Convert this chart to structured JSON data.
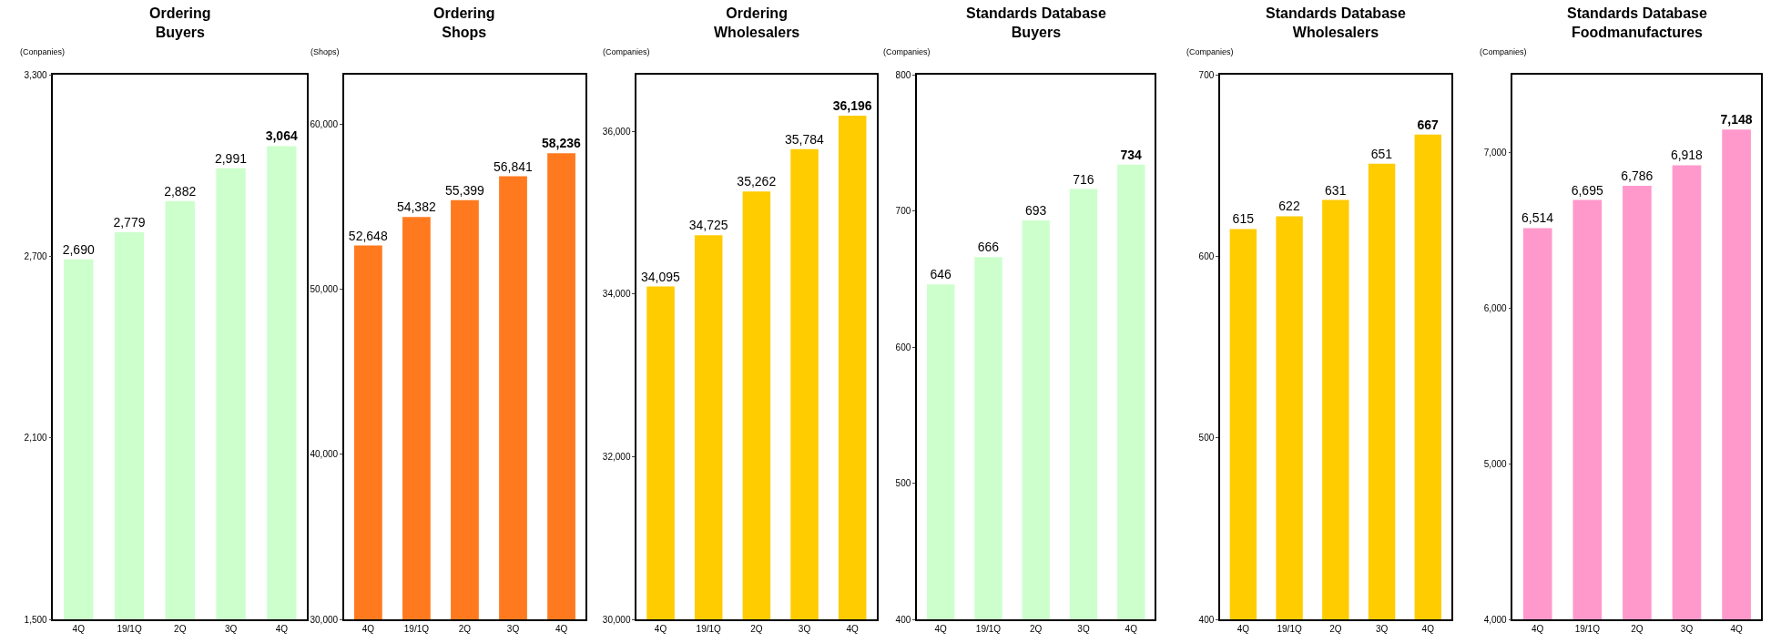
{
  "chart_data": [
    {
      "type": "bar",
      "title": "Ordering\nBuyers",
      "ylabel": "(Conpanies)",
      "categories": [
        "4Q",
        "19/1Q",
        "2Q",
        "3Q",
        "4Q"
      ],
      "values": [
        2690,
        2779,
        2882,
        2991,
        3064
      ],
      "value_labels": [
        "2,690",
        "2,779",
        "2,882",
        "2,991",
        "3,064"
      ],
      "color": "#ccffcc",
      "ylim": [
        1500,
        3300
      ],
      "yticks": [
        {
          "value": 1500,
          "label": "1,500"
        },
        {
          "value": 2100,
          "label": "2,100"
        },
        {
          "value": 2700,
          "label": "2,700"
        },
        {
          "value": 3300,
          "label": "3,300"
        }
      ]
    },
    {
      "type": "bar",
      "title": "Ordering\nShops",
      "ylabel": "(Shops)",
      "categories": [
        "4Q",
        "19/1Q",
        "2Q",
        "3Q",
        "4Q"
      ],
      "values": [
        52648,
        54382,
        55399,
        56841,
        58236
      ],
      "value_labels": [
        "52,648",
        "54,382",
        "55,399",
        "56,841",
        "58,236"
      ],
      "color": "#ff7a1f",
      "ylim": [
        30000,
        63000
      ],
      "yticks": [
        {
          "value": 30000,
          "label": "30,000"
        },
        {
          "value": 40000,
          "label": "40,000"
        },
        {
          "value": 50000,
          "label": "50,000"
        },
        {
          "value": 60000,
          "label": "60,000"
        }
      ]
    },
    {
      "type": "bar",
      "title": "Ordering\nWholesalers",
      "ylabel": "(Companies)",
      "categories": [
        "4Q",
        "19/1Q",
        "2Q",
        "3Q",
        "4Q"
      ],
      "values": [
        34095,
        34725,
        35262,
        35784,
        36196
      ],
      "value_labels": [
        "34,095",
        "34,725",
        "35,262",
        "35,784",
        "36,196"
      ],
      "color": "#ffcc00",
      "ylim": [
        30000,
        36700
      ],
      "yticks": [
        {
          "value": 30000,
          "label": "30,000"
        },
        {
          "value": 32000,
          "label": "32,000"
        },
        {
          "value": 34000,
          "label": "34,000"
        },
        {
          "value": 36000,
          "label": "36,000"
        }
      ]
    },
    {
      "type": "bar",
      "title": "Standards Database\nBuyers",
      "ylabel": "(Companies)",
      "categories": [
        "4Q",
        "19/1Q",
        "2Q",
        "3Q",
        "4Q"
      ],
      "values": [
        646,
        666,
        693,
        716,
        734
      ],
      "value_labels": [
        "646",
        "666",
        "693",
        "716",
        "734"
      ],
      "color": "#ccffcc",
      "ylim": [
        400,
        800
      ],
      "yticks": [
        400,
        500,
        600,
        700,
        800
      ]
    },
    {
      "type": "bar",
      "title": "Standards Database\nWholesalers",
      "ylabel": "(Companies)",
      "categories": [
        "4Q",
        "19/1Q",
        "2Q",
        "3Q",
        "4Q"
      ],
      "values": [
        615,
        622,
        631,
        651,
        667
      ],
      "value_labels": [
        "615",
        "622",
        "631",
        "651",
        "667"
      ],
      "color": "#ffcc00",
      "ylim": [
        400,
        700
      ],
      "yticks": [
        400,
        500,
        600,
        700
      ]
    },
    {
      "type": "bar",
      "title": "Standards Database\nFoodmanufactures",
      "ylabel": "(Companies)",
      "categories": [
        "4Q",
        "19/1Q",
        "2Q",
        "3Q",
        "4Q"
      ],
      "values": [
        6514,
        6695,
        6786,
        6918,
        7148
      ],
      "value_labels": [
        "6,514",
        "6,695",
        "6,786",
        "6,918",
        "7,148"
      ],
      "color": "#ff99cc",
      "ylim": [
        4000,
        7500
      ],
      "yticks": [
        {
          "value": 4000,
          "label": "4,000"
        },
        {
          "value": 5000,
          "label": "5,000"
        },
        {
          "value": 6000,
          "label": "6,000"
        },
        {
          "value": 7000,
          "label": "7,000"
        }
      ]
    }
  ]
}
